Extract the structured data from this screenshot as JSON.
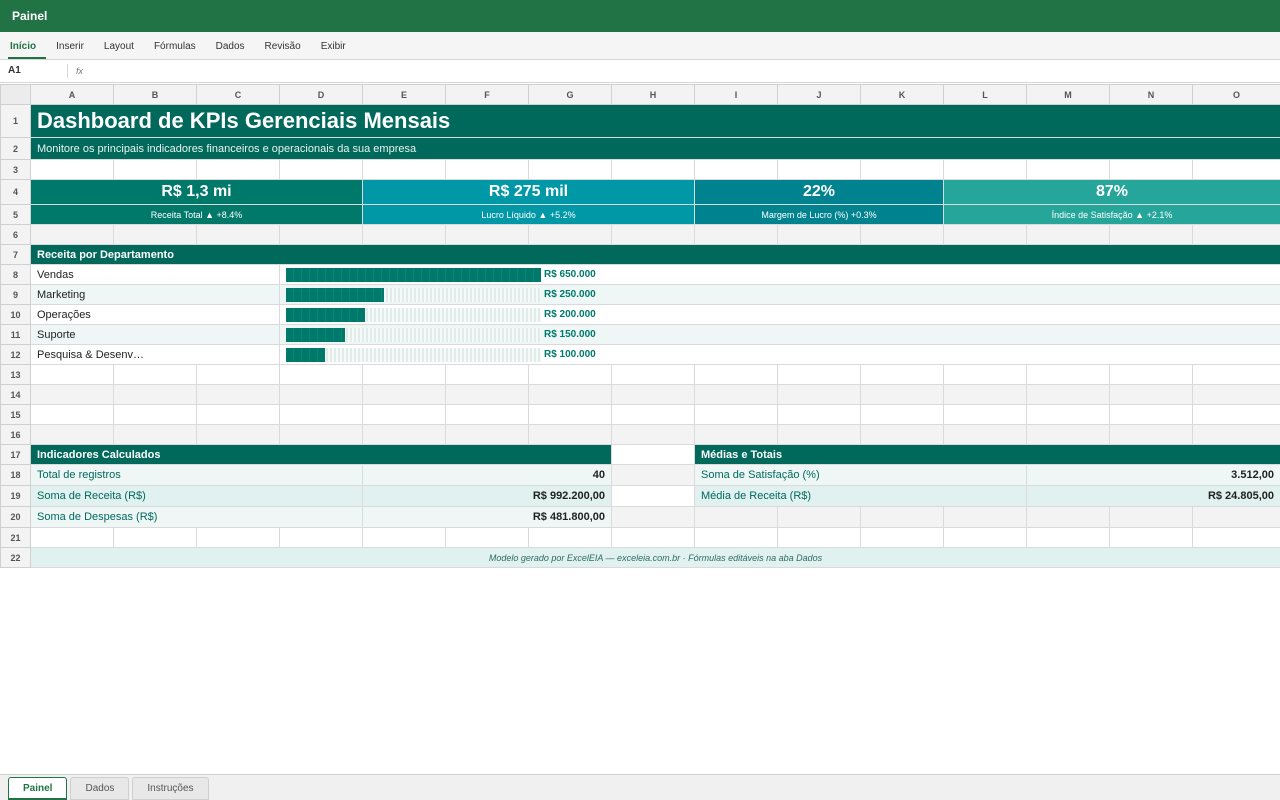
{
  "app": {
    "title": "Painel"
  },
  "ribbon": {
    "tabs": [
      "Início",
      "Inserir",
      "Layout",
      "Fórmulas",
      "Dados",
      "Revisão",
      "Exibir"
    ],
    "active": 0
  },
  "formula_bar": {
    "cell_ref": "A1",
    "fx": "fx",
    "value": ""
  },
  "columns": [
    "A",
    "B",
    "C",
    "D",
    "E",
    "F",
    "G",
    "H",
    "I",
    "J",
    "K",
    "L",
    "M",
    "N",
    "O"
  ],
  "rows": [
    "1",
    "2",
    "3",
    "4",
    "5",
    "6",
    "7",
    "8",
    "9",
    "10",
    "11",
    "12",
    "13",
    "14",
    "15",
    "16",
    "17",
    "18",
    "19",
    "20",
    "21",
    "22"
  ],
  "dashboard": {
    "title": "Dashboard de KPIs Gerenciais Mensais",
    "subtitle": "Monitore os principais indicadores financeiros e operacionais da sua empresa",
    "kpis": [
      {
        "value": "R$ 1,3 mi",
        "label": "Receita Total ▲ +8.4%",
        "color": "#00796b"
      },
      {
        "value": "R$ 275 mil",
        "label": "Lucro Líquido ▲ +5.2%",
        "color": "#0097a7"
      },
      {
        "value": "22%",
        "label": "Margem de Lucro (%) +0.3%",
        "color": "#00838f"
      },
      {
        "value": "87%",
        "label": "Índice de Satisfação ▲ +2.1%",
        "color": "#26a69a"
      }
    ]
  },
  "revenue": {
    "heading": "Receita por Departamento",
    "items": [
      {
        "name": "Vendas",
        "amount": "R$ 650.000",
        "fraction": 1.0
      },
      {
        "name": "Marketing",
        "amount": "R$ 250.000",
        "fraction": 0.385
      },
      {
        "name": "Operações",
        "amount": "R$ 200.000",
        "fraction": 0.308
      },
      {
        "name": "Suporte",
        "amount": "R$ 150.000",
        "fraction": 0.231
      },
      {
        "name": "Pesquisa & Desenv…",
        "amount": "R$ 100.000",
        "fraction": 0.154
      }
    ]
  },
  "indicators": {
    "heading": "Indicadores Calculados",
    "items": [
      {
        "label": "Total de registros",
        "value": "40"
      },
      {
        "label": "Soma de Receita (R$)",
        "value": "R$ 992.200,00"
      },
      {
        "label": "Soma de Despesas (R$)",
        "value": "R$ 481.800,00"
      }
    ]
  },
  "averages": {
    "heading": "Médias e Totais",
    "items": [
      {
        "label": "Soma de Satisfação (%)",
        "value": "3.512,00"
      },
      {
        "label": "Média de Receita (R$)",
        "value": "R$ 24.805,00"
      }
    ]
  },
  "footer": {
    "text": "Modelo gerado por ExcelEIA — exceleia.com.br · Fórmulas editáveis na aba Dados"
  },
  "sheets": {
    "tabs": [
      "Painel",
      "Dados",
      "Instruções"
    ],
    "active": 0
  },
  "colors": {
    "brand": "#217346",
    "header_teal": "#00695c",
    "accent": "#00796b"
  }
}
